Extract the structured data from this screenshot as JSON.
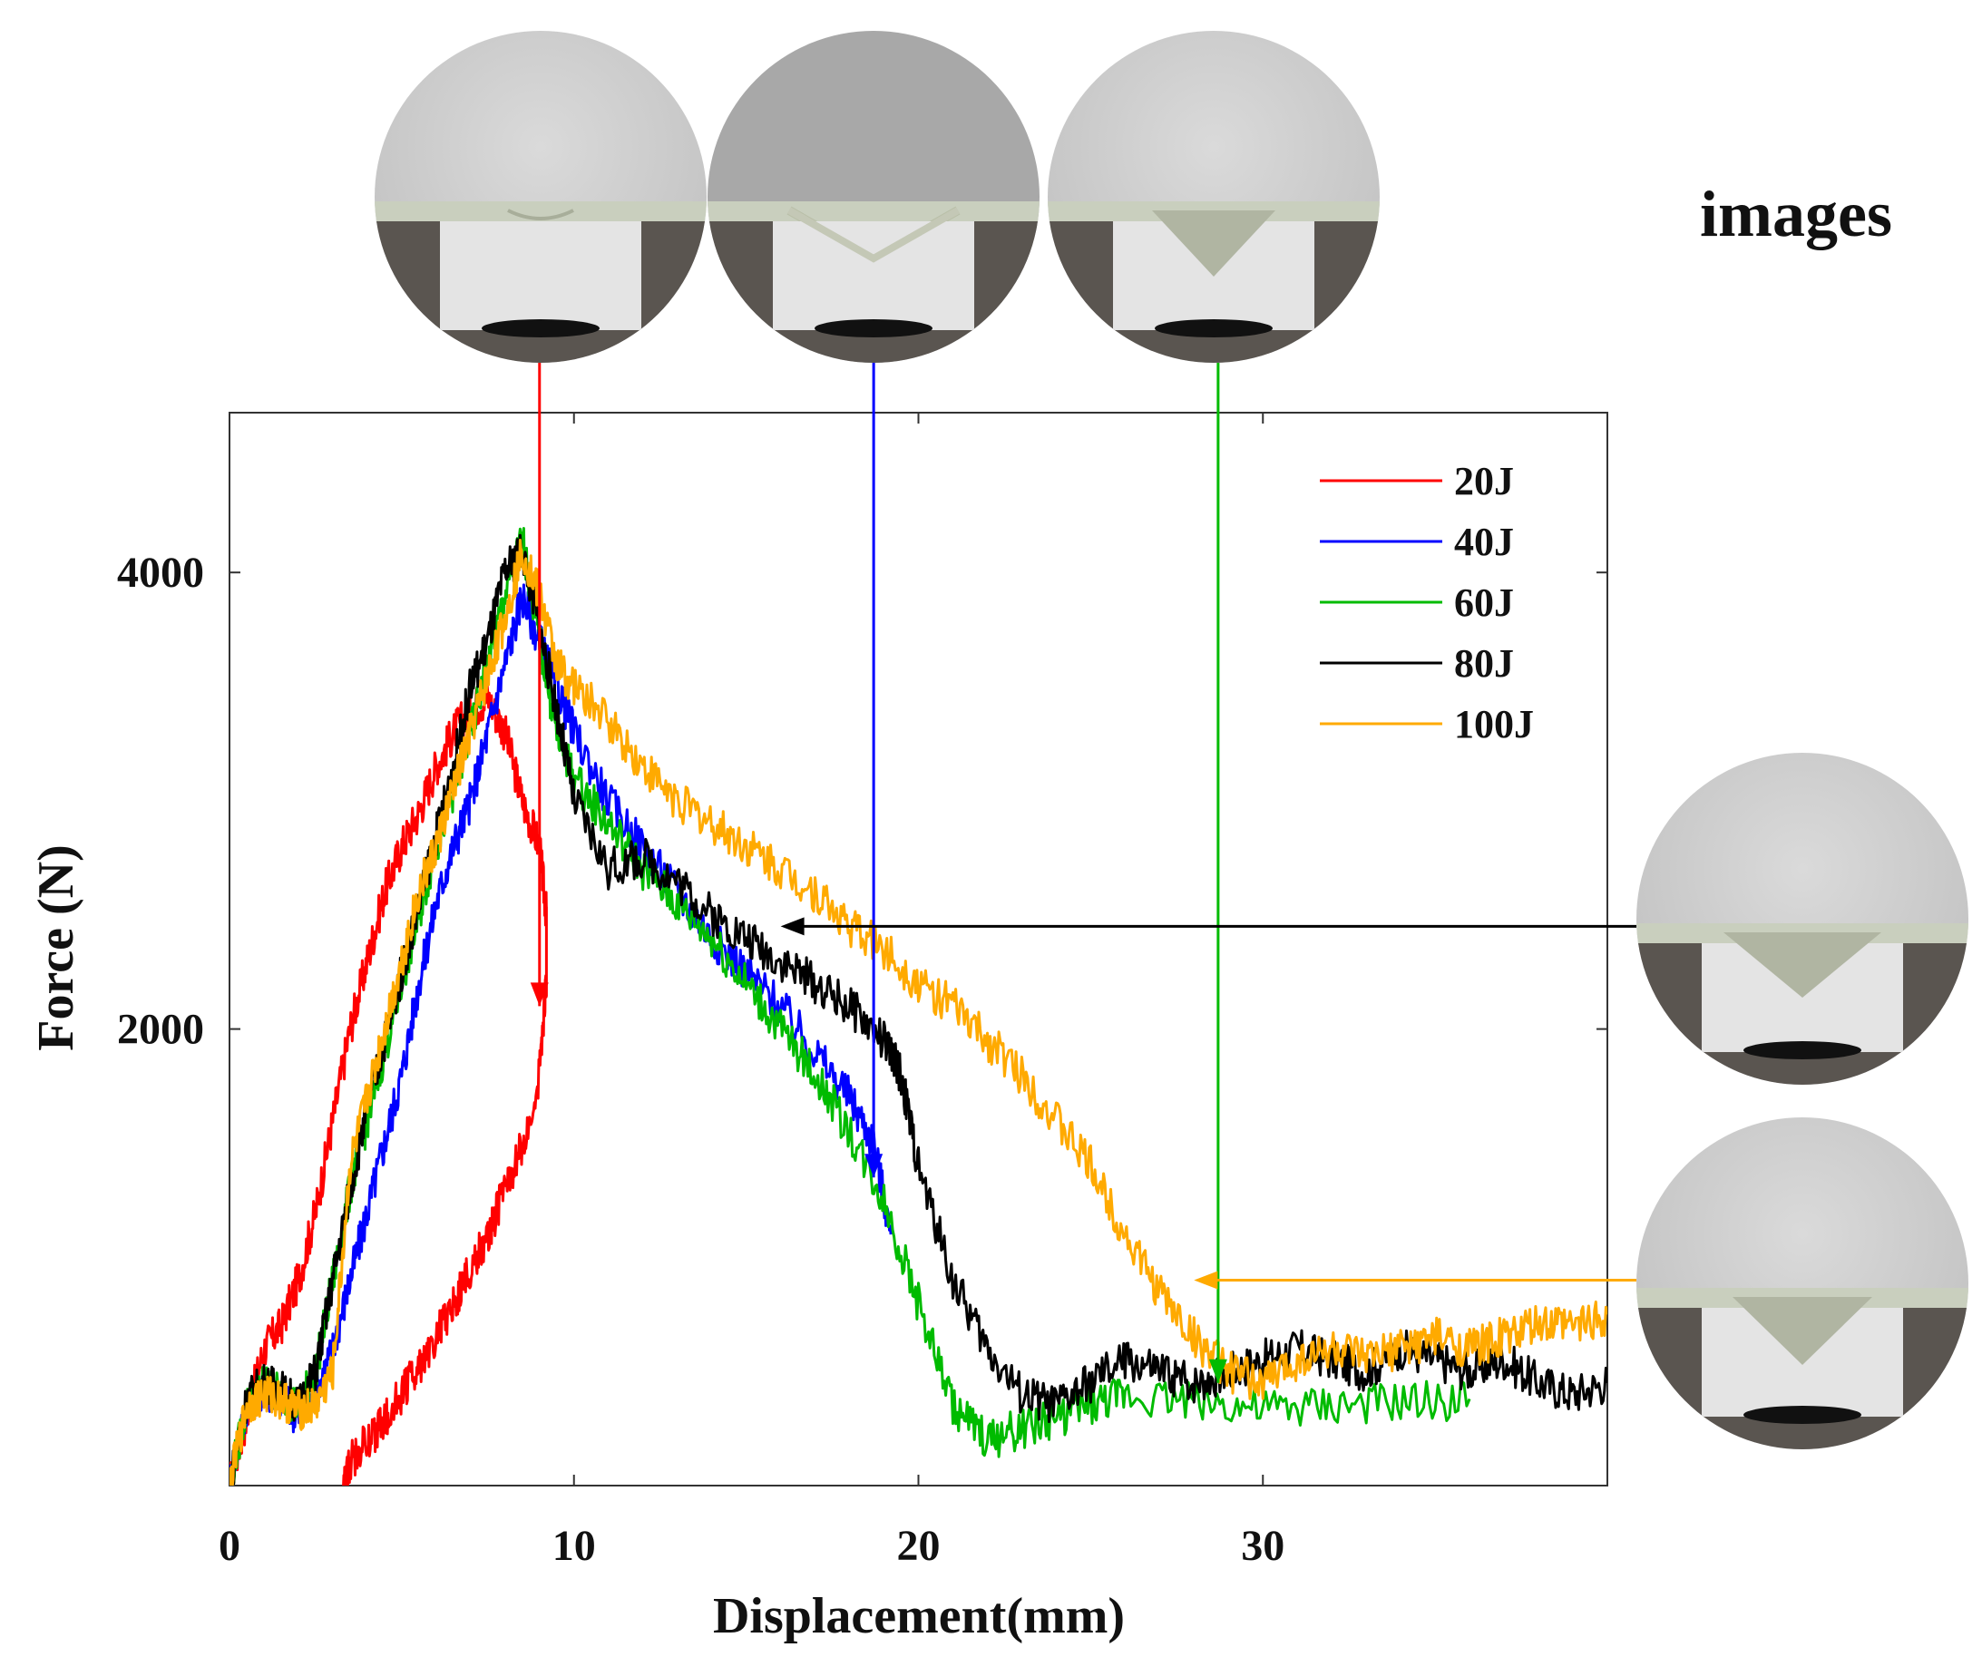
{
  "chart_data": {
    "type": "line",
    "title": "images",
    "xlabel": "Displacement(mm)",
    "ylabel": "Force (N)",
    "xlim": [
      0,
      40
    ],
    "ylim": [
      0,
      4700
    ],
    "x_ticks": [
      0,
      10,
      20,
      30
    ],
    "y_ticks": [
      2000,
      4000
    ],
    "legend_position": "top-right",
    "grid": false,
    "series": [
      {
        "name": "20J",
        "color": "#ff0000",
        "x": [
          0,
          0.5,
          1,
          1.5,
          2,
          2.5,
          3,
          3.5,
          4,
          4.5,
          5,
          5.5,
          6,
          6.5,
          7,
          7.5,
          8,
          8.5,
          9,
          9.2,
          9.2,
          9,
          8.5,
          8,
          7.5,
          7,
          6.5,
          6,
          5.5,
          5,
          4.5,
          4,
          3.5,
          3.3
        ],
        "y": [
          0,
          300,
          600,
          700,
          900,
          1200,
          1600,
          2000,
          2300,
          2600,
          2800,
          2950,
          3150,
          3300,
          3400,
          3450,
          3300,
          3000,
          2800,
          2500,
          2200,
          1800,
          1500,
          1300,
          1100,
          950,
          800,
          650,
          520,
          400,
          280,
          200,
          100,
          0
        ]
      },
      {
        "name": "40J",
        "color": "#0000ff",
        "x": [
          0,
          0.5,
          1,
          1.5,
          2,
          2.5,
          3,
          3.5,
          4,
          4.5,
          5,
          5.5,
          6,
          6.5,
          7,
          7.5,
          8,
          8.5,
          9,
          9.5,
          10,
          11,
          12,
          13,
          14,
          15,
          16,
          17,
          18,
          18.7,
          19.2
        ],
        "y": [
          0,
          350,
          420,
          380,
          300,
          400,
          600,
          900,
          1200,
          1500,
          1800,
          2200,
          2550,
          2800,
          3000,
          3300,
          3600,
          3900,
          3700,
          3500,
          3300,
          3000,
          2800,
          2600,
          2400,
          2250,
          2100,
          1900,
          1700,
          1500,
          1100
        ]
      },
      {
        "name": "60J",
        "color": "#00bb00",
        "x": [
          0,
          0.5,
          1,
          1.5,
          2,
          2.5,
          3,
          3.5,
          4,
          4.5,
          5,
          5.5,
          6,
          6.5,
          7,
          7.5,
          8,
          8.5,
          9,
          9.5,
          10,
          11,
          12,
          13,
          14,
          15,
          16,
          17,
          18,
          19,
          20,
          21,
          22,
          23,
          24,
          25,
          26,
          28,
          30,
          32,
          34,
          36
        ],
        "y": [
          0,
          350,
          450,
          400,
          350,
          500,
          900,
          1300,
          1600,
          1900,
          2200,
          2500,
          2800,
          3050,
          3300,
          3600,
          3900,
          4150,
          3700,
          3300,
          3100,
          2900,
          2700,
          2550,
          2400,
          2200,
          2000,
          1800,
          1550,
          1250,
          800,
          350,
          200,
          250,
          300,
          350,
          400,
          380,
          330,
          350,
          360,
          380
        ]
      },
      {
        "name": "80J",
        "color": "#000000",
        "x": [
          0,
          0.5,
          1,
          1.5,
          2,
          2.5,
          3,
          3.5,
          4,
          4.5,
          5,
          5.5,
          6,
          6.5,
          7,
          7.5,
          8,
          8.5,
          9,
          9.5,
          10,
          11,
          12,
          13,
          14,
          15,
          16,
          17,
          18,
          19,
          19.5,
          20,
          21,
          22,
          23,
          24,
          25,
          26,
          27,
          28,
          29,
          30,
          31,
          32,
          33,
          34,
          35,
          36,
          37,
          38,
          39,
          40
        ],
        "y": [
          0,
          380,
          450,
          420,
          350,
          500,
          900,
          1300,
          1650,
          1950,
          2250,
          2550,
          2850,
          3150,
          3500,
          3700,
          4000,
          4100,
          3750,
          3400,
          3000,
          2700,
          2750,
          2650,
          2500,
          2400,
          2300,
          2200,
          2100,
          1950,
          1800,
          1400,
          900,
          600,
          400,
          350,
          450,
          550,
          500,
          450,
          500,
          550,
          600,
          550,
          500,
          600,
          550,
          500,
          550,
          450,
          400,
          450
        ]
      },
      {
        "name": "100J",
        "color": "#ffaa00",
        "x": [
          0,
          0.5,
          1,
          1.5,
          2,
          2.5,
          3,
          3.5,
          4,
          4.5,
          5,
          5.5,
          6,
          6.5,
          7,
          7.5,
          8,
          8.5,
          9,
          9.5,
          10,
          11,
          12,
          13,
          14,
          15,
          16,
          17,
          18,
          19,
          20,
          21,
          22,
          23,
          24,
          25,
          26,
          27,
          28,
          29,
          30,
          31,
          32,
          33,
          34,
          35,
          36,
          37,
          38,
          39,
          40
        ],
        "y": [
          0,
          350,
          400,
          380,
          330,
          350,
          500,
          1400,
          1700,
          2000,
          2300,
          2600,
          2800,
          3050,
          3300,
          3550,
          3800,
          4100,
          3900,
          3600,
          3500,
          3350,
          3150,
          3000,
          2900,
          2800,
          2700,
          2600,
          2450,
          2350,
          2200,
          2100,
          1950,
          1800,
          1600,
          1400,
          1100,
          850,
          650,
          500,
          450,
          550,
          600,
          550,
          600,
          650,
          600,
          650,
          700,
          700,
          750
        ]
      }
    ],
    "annotations": [
      {
        "target_series": "20J",
        "x": 9.0
      },
      {
        "target_series": "40J",
        "x": 18.7
      },
      {
        "target_series": "60J",
        "x": 28.7
      },
      {
        "target_series": "80J",
        "x": 16.0,
        "y": 2450
      },
      {
        "target_series": "100J",
        "x": 28.0,
        "y": 900
      }
    ]
  }
}
